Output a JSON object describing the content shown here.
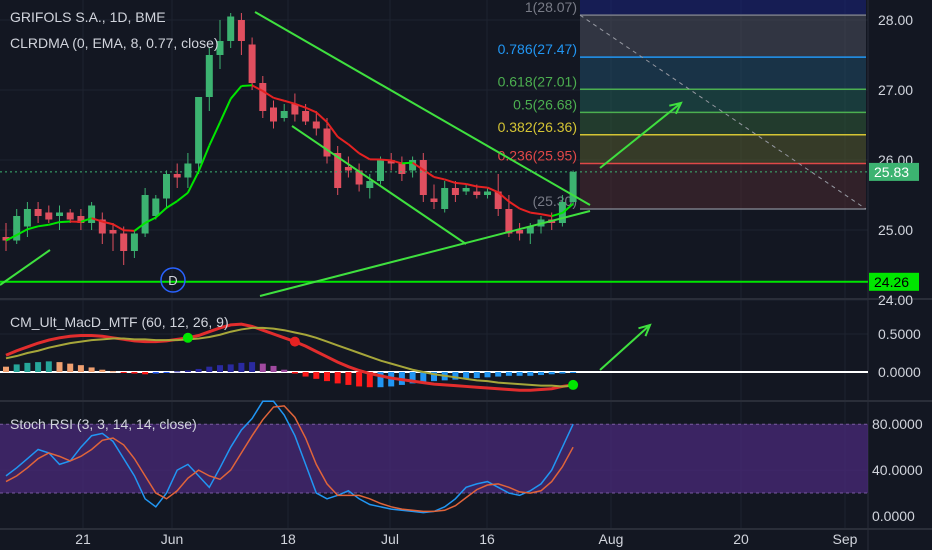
{
  "header": {
    "symbol_line": "GRIFOLS S.A., 1D, BME",
    "indicator_line": "CLRDMA (0, EMA, 8, 0.77, close)",
    "macd_title": "CM_Ult_MacD_MTF (60, 12, 26, 9)",
    "stoch_title": "Stoch RSI (3, 3, 14, 14, close)"
  },
  "chart_data": [
    {
      "type": "candlestick",
      "pane": "price",
      "symbol": "GRIFOLS S.A.",
      "interval": "1D",
      "exchange": "BME",
      "ylim": [
        24.0,
        28.2
      ],
      "y_ticks": [
        "28.00",
        "27.00",
        "26.00",
        "25.00",
        "24.00"
      ],
      "last_price_label": "25.83",
      "support_label": "24.26",
      "support_level": 24.26,
      "ema_line_label": "CLRDMA (0, EMA, 8, 0.77, close)",
      "fibonacci_levels": [
        {
          "label": "1(28.07)",
          "value": 28.07,
          "color": "#787b86"
        },
        {
          "label": "0.786(27.47)",
          "value": 27.47,
          "color": "#2196f3"
        },
        {
          "label": "0.618(27.01)",
          "value": 27.01,
          "color": "#4caf50"
        },
        {
          "label": "0.5(26.68)",
          "value": 26.68,
          "color": "#4caf50"
        },
        {
          "label": "0.382(26.36)",
          "value": 26.36,
          "color": "#d4c434"
        },
        {
          "label": "0.236(25.95)",
          "value": 25.95,
          "color": "#e04848"
        },
        {
          "label": "(25.30)",
          "value": 25.3,
          "color": "#787b86"
        }
      ],
      "marker_label": "D",
      "candles": [
        {
          "o": 24.9,
          "h": 25.1,
          "l": 24.7,
          "c": 24.85
        },
        {
          "o": 24.85,
          "h": 25.3,
          "l": 24.8,
          "c": 25.2
        },
        {
          "o": 25.05,
          "h": 25.4,
          "l": 24.9,
          "c": 25.3
        },
        {
          "o": 25.3,
          "h": 25.4,
          "l": 25.1,
          "c": 25.2
        },
        {
          "o": 25.25,
          "h": 25.35,
          "l": 25.1,
          "c": 25.15
        },
        {
          "o": 25.2,
          "h": 25.35,
          "l": 25.0,
          "c": 25.25
        },
        {
          "o": 25.25,
          "h": 25.3,
          "l": 25.1,
          "c": 25.15
        },
        {
          "o": 25.2,
          "h": 25.3,
          "l": 25.0,
          "c": 25.1
        },
        {
          "o": 25.1,
          "h": 25.4,
          "l": 25.0,
          "c": 25.35
        },
        {
          "o": 25.15,
          "h": 25.25,
          "l": 24.8,
          "c": 24.95
        },
        {
          "o": 25.0,
          "h": 25.1,
          "l": 24.7,
          "c": 24.95
        },
        {
          "o": 24.95,
          "h": 25.05,
          "l": 24.5,
          "c": 24.7
        },
        {
          "o": 24.7,
          "h": 25.0,
          "l": 24.6,
          "c": 24.95
        },
        {
          "o": 24.95,
          "h": 25.6,
          "l": 24.9,
          "c": 25.5
        },
        {
          "o": 25.2,
          "h": 25.5,
          "l": 25.15,
          "c": 25.45
        },
        {
          "o": 25.45,
          "h": 25.85,
          "l": 25.3,
          "c": 25.8
        },
        {
          "o": 25.8,
          "h": 25.95,
          "l": 25.6,
          "c": 25.75
        },
        {
          "o": 25.75,
          "h": 26.1,
          "l": 25.6,
          "c": 25.95
        },
        {
          "o": 25.95,
          "h": 26.9,
          "l": 25.8,
          "c": 26.9
        },
        {
          "o": 26.9,
          "h": 27.6,
          "l": 26.7,
          "c": 27.5
        },
        {
          "o": 27.5,
          "h": 28.0,
          "l": 27.3,
          "c": 27.7
        },
        {
          "o": 27.7,
          "h": 28.1,
          "l": 27.6,
          "c": 28.05
        },
        {
          "o": 28.0,
          "h": 28.1,
          "l": 27.5,
          "c": 27.7
        },
        {
          "o": 27.65,
          "h": 27.75,
          "l": 27.0,
          "c": 27.1
        },
        {
          "o": 27.1,
          "h": 27.2,
          "l": 26.6,
          "c": 26.7
        },
        {
          "o": 26.75,
          "h": 26.85,
          "l": 26.45,
          "c": 26.55
        },
        {
          "o": 26.6,
          "h": 26.8,
          "l": 26.55,
          "c": 26.7
        },
        {
          "o": 26.8,
          "h": 26.95,
          "l": 26.55,
          "c": 26.65
        },
        {
          "o": 26.7,
          "h": 26.8,
          "l": 26.5,
          "c": 26.55
        },
        {
          "o": 26.55,
          "h": 26.7,
          "l": 26.35,
          "c": 26.45
        },
        {
          "o": 26.45,
          "h": 26.6,
          "l": 25.95,
          "c": 26.05
        },
        {
          "o": 26.1,
          "h": 26.2,
          "l": 25.5,
          "c": 25.6
        },
        {
          "o": 25.9,
          "h": 26.05,
          "l": 25.75,
          "c": 25.85
        },
        {
          "o": 25.85,
          "h": 25.95,
          "l": 25.55,
          "c": 25.65
        },
        {
          "o": 25.6,
          "h": 25.8,
          "l": 25.45,
          "c": 25.7
        },
        {
          "o": 25.7,
          "h": 26.05,
          "l": 25.65,
          "c": 26.0
        },
        {
          "o": 26.0,
          "h": 26.1,
          "l": 25.85,
          "c": 25.95
        },
        {
          "o": 25.95,
          "h": 26.05,
          "l": 25.7,
          "c": 25.8
        },
        {
          "o": 25.85,
          "h": 26.05,
          "l": 25.75,
          "c": 26.0
        },
        {
          "o": 26.0,
          "h": 26.1,
          "l": 25.4,
          "c": 25.5
        },
        {
          "o": 25.45,
          "h": 25.65,
          "l": 25.3,
          "c": 25.4
        },
        {
          "o": 25.3,
          "h": 25.7,
          "l": 25.25,
          "c": 25.6
        },
        {
          "o": 25.6,
          "h": 25.7,
          "l": 25.4,
          "c": 25.5
        },
        {
          "o": 25.55,
          "h": 25.65,
          "l": 25.5,
          "c": 25.6
        },
        {
          "o": 25.55,
          "h": 25.65,
          "l": 25.45,
          "c": 25.5
        },
        {
          "o": 25.5,
          "h": 25.6,
          "l": 25.45,
          "c": 25.55
        },
        {
          "o": 25.55,
          "h": 25.8,
          "l": 25.2,
          "c": 25.3
        },
        {
          "o": 25.3,
          "h": 25.5,
          "l": 24.9,
          "c": 24.95
        },
        {
          "o": 25.0,
          "h": 25.1,
          "l": 24.85,
          "c": 24.95
        },
        {
          "o": 24.95,
          "h": 25.1,
          "l": 24.8,
          "c": 25.05
        },
        {
          "o": 25.05,
          "h": 25.2,
          "l": 24.95,
          "c": 25.15
        },
        {
          "o": 25.15,
          "h": 25.25,
          "l": 25.0,
          "c": 25.1
        },
        {
          "o": 25.1,
          "h": 25.5,
          "l": 25.05,
          "c": 25.4
        },
        {
          "o": 25.4,
          "h": 25.85,
          "l": 25.35,
          "c": 25.83
        }
      ]
    },
    {
      "type": "line",
      "pane": "macd",
      "title": "CM_Ult_MacD_MTF (60, 12, 26, 9)",
      "ylim": [
        -0.35,
        0.85
      ],
      "y_ticks": [
        "0.5000",
        "0.0000"
      ],
      "series": [
        {
          "name": "macd",
          "color": "#e22d2d",
          "values": [
            0.22,
            0.28,
            0.33,
            0.38,
            0.42,
            0.45,
            0.47,
            0.48,
            0.48,
            0.47,
            0.45,
            0.43,
            0.41,
            0.4,
            0.4,
            0.41,
            0.43,
            0.45,
            0.48,
            0.53,
            0.58,
            0.62,
            0.63,
            0.6,
            0.55,
            0.5,
            0.45,
            0.4,
            0.34,
            0.27,
            0.2,
            0.13,
            0.07,
            0.02,
            -0.02,
            -0.05,
            -0.08,
            -0.1,
            -0.12,
            -0.14,
            -0.16,
            -0.17,
            -0.18,
            -0.19,
            -0.2,
            -0.21,
            -0.22,
            -0.23,
            -0.24,
            -0.24,
            -0.23,
            -0.22,
            -0.19,
            -0.17
          ]
        },
        {
          "name": "signal",
          "color": "#a6a63a",
          "values": [
            0.18,
            0.21,
            0.25,
            0.28,
            0.32,
            0.35,
            0.38,
            0.4,
            0.42,
            0.43,
            0.44,
            0.44,
            0.43,
            0.43,
            0.42,
            0.42,
            0.42,
            0.43,
            0.44,
            0.46,
            0.49,
            0.53,
            0.56,
            0.58,
            0.58,
            0.57,
            0.55,
            0.52,
            0.49,
            0.45,
            0.4,
            0.35,
            0.3,
            0.25,
            0.2,
            0.15,
            0.11,
            0.07,
            0.03,
            0.0,
            -0.03,
            -0.05,
            -0.07,
            -0.09,
            -0.11,
            -0.12,
            -0.14,
            -0.15,
            -0.16,
            -0.17,
            -0.18,
            -0.18,
            -0.19,
            -0.18
          ]
        }
      ],
      "histogram": [
        0.07,
        0.1,
        0.12,
        0.13,
        0.14,
        0.13,
        0.11,
        0.09,
        0.06,
        0.03,
        0.01,
        -0.01,
        -0.02,
        -0.03,
        -0.02,
        -0.01,
        0.01,
        0.02,
        0.04,
        0.07,
        0.09,
        0.1,
        0.12,
        0.13,
        0.11,
        0.08,
        0.03,
        -0.02,
        -0.06,
        -0.09,
        -0.12,
        -0.15,
        -0.17,
        -0.19,
        -0.2,
        -0.2,
        -0.19,
        -0.17,
        -0.15,
        -0.13,
        -0.12,
        -0.11,
        -0.1,
        -0.09,
        -0.08,
        -0.07,
        -0.06,
        -0.05,
        -0.05,
        -0.05,
        -0.04,
        -0.03,
        -0.02,
        -0.01
      ]
    },
    {
      "type": "line",
      "pane": "stoch_rsi",
      "title": "Stoch RSI (3, 3, 14, 14, close)",
      "ylim": [
        -10,
        105
      ],
      "y_ticks": [
        "80.0000",
        "40.0000",
        "0.0000"
      ],
      "band": [
        20,
        80
      ],
      "series": [
        {
          "name": "k",
          "color": "#2196f3",
          "values": [
            35,
            42,
            50,
            58,
            55,
            45,
            48,
            60,
            70,
            72,
            65,
            50,
            35,
            15,
            8,
            20,
            40,
            45,
            35,
            25,
            42,
            60,
            75,
            85,
            100,
            100,
            88,
            70,
            45,
            20,
            15,
            18,
            22,
            15,
            10,
            8,
            6,
            5,
            4,
            3,
            4,
            8,
            15,
            25,
            28,
            30,
            25,
            20,
            18,
            22,
            28,
            40,
            60,
            80
          ]
        },
        {
          "name": "d",
          "color": "#e0643a",
          "values": [
            30,
            35,
            42,
            50,
            55,
            52,
            48,
            52,
            58,
            66,
            68,
            62,
            50,
            35,
            20,
            15,
            22,
            33,
            40,
            35,
            32,
            40,
            55,
            70,
            84,
            95,
            96,
            86,
            68,
            45,
            28,
            18,
            18,
            18,
            15,
            11,
            8,
            6,
            5,
            4,
            4,
            5,
            9,
            16,
            23,
            27,
            28,
            25,
            21,
            20,
            22,
            30,
            43,
            60
          ]
        }
      ]
    }
  ],
  "x_axis_labels": [
    "21",
    "Jun",
    "18",
    "Jul",
    "16",
    "Aug",
    "20",
    "Sep"
  ]
}
